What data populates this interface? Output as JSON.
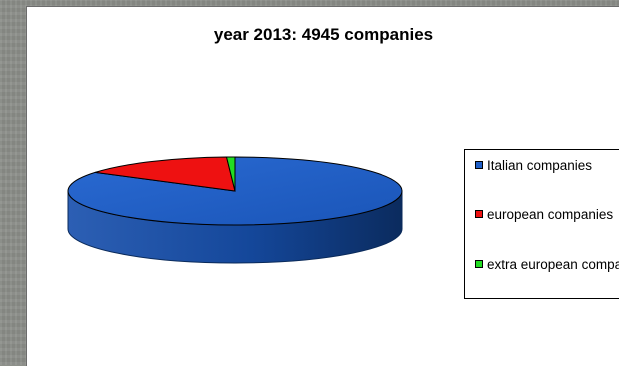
{
  "chart_data": {
    "type": "pie",
    "title": "year 2013: 4945 companies",
    "categories": [
      "Italian companies",
      "european companies",
      "extra european companies"
    ],
    "values": [
      4164,
      741,
      40
    ],
    "colors": [
      "#1f5fc8",
      "#ee1111",
      "#22dd22"
    ],
    "legend_position": "right",
    "style": "3d-tilted"
  }
}
